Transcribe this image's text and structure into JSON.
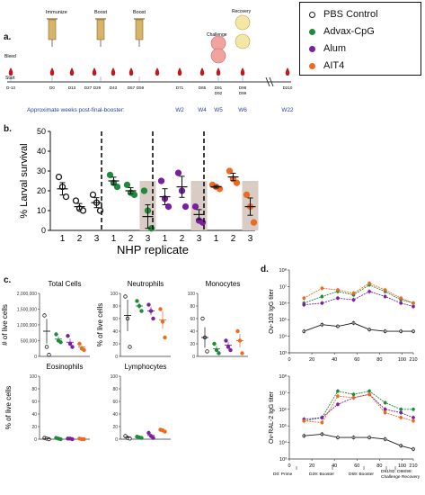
{
  "panels": {
    "a": "a.",
    "b": "b.",
    "c": "c.",
    "d": "d."
  },
  "legend": [
    {
      "label": "PBS Control",
      "color": "#1a1a1a",
      "hollow": true
    },
    {
      "label": "Advax-CpG",
      "color": "#1f8a3c",
      "hollow": false
    },
    {
      "label": "Alum",
      "color": "#7b1fa2",
      "hollow": false
    },
    {
      "label": "AIT4",
      "color": "#ee6a1f",
      "hollow": false
    }
  ],
  "timeline": {
    "events": {
      "immunize": "Immunize",
      "boost1": "Boost",
      "boost2": "Boost",
      "challenge": "Challenge",
      "recovery": "Recovery",
      "bleed": "Bleed",
      "start": "Start"
    },
    "days": [
      "D-13",
      "D0",
      "D13",
      "D27",
      "D29",
      "D43",
      "D57",
      "D59",
      "D71",
      "D85",
      "D91\nD92",
      "D98\nD99",
      "D210"
    ],
    "weeks_label": "Approximate weeks post-final-booster:",
    "weeks": [
      "W2",
      "W4",
      "W5",
      "W6",
      "W22"
    ]
  },
  "chart_data": [
    {
      "panel": "b",
      "type": "scatter",
      "ylabel": "% Larval survival",
      "xlabel": "NHP replicate",
      "ylim": [
        0,
        50
      ],
      "yticks": [
        0,
        10,
        20,
        30,
        40,
        50
      ],
      "groups": [
        {
          "name": "PBS Control",
          "replicates": [
            "1",
            "2",
            "3"
          ],
          "points": [
            [
              27,
              22,
              17
            ],
            [
              15,
              11,
              10
            ],
            [
              18,
              14,
              10
            ]
          ],
          "mean": [
            21,
            12,
            14
          ],
          "shaded": []
        },
        {
          "name": "Advax-CpG",
          "replicates": [
            "1",
            "2",
            "3"
          ],
          "points": [
            [
              28,
              24,
              22
            ],
            [
              23,
              19,
              18
            ],
            [
              20,
              10,
              1
            ]
          ],
          "mean": [
            25,
            20,
            7
          ],
          "shaded": [
            2
          ]
        },
        {
          "name": "Alum",
          "replicates": [
            "1",
            "2",
            "3"
          ],
          "points": [
            [
              25,
              16,
              12
            ],
            [
              29,
              20,
              12
            ],
            [
              12,
              5,
              4
            ]
          ],
          "mean": [
            17,
            22,
            8
          ],
          "shaded": [
            2
          ]
        },
        {
          "name": "AIT4",
          "replicates": [
            "1",
            "2",
            "3"
          ],
          "points": [
            [
              23,
              22,
              21
            ],
            [
              30,
              26,
              24
            ],
            [
              18,
              12,
              4
            ]
          ],
          "mean": [
            22,
            27,
            12
          ],
          "shaded": [
            2
          ]
        }
      ]
    },
    {
      "panel": "c",
      "type": "scatter",
      "subplots": [
        {
          "title": "Total Cells",
          "ylabel": "# of live cells",
          "yticks": [
            "0",
            "500,000",
            "1,000,000",
            "1,500,000",
            "2,000,000"
          ],
          "ylim": [
            0,
            2000000
          ],
          "groups": [
            [
              1300000,
              300000,
              50000
            ],
            [
              700000,
              500000,
              450000
            ],
            [
              650000,
              400000,
              300000
            ],
            [
              400000,
              250000,
              200000
            ]
          ],
          "means": [
            800000,
            550000,
            450000,
            300000
          ]
        },
        {
          "title": "Neutrophils",
          "ylabel": "% of live cells",
          "yticks": [
            "0",
            "20",
            "40",
            "60",
            "80",
            "100"
          ],
          "ylim": [
            0,
            100
          ],
          "groups": [
            [
              95,
              60,
              15
            ],
            [
              88,
              80,
              72
            ],
            [
              82,
              72,
              60
            ],
            [
              75,
              55,
              30
            ]
          ],
          "means": [
            65,
            80,
            72,
            58
          ]
        },
        {
          "title": "Monocytes",
          "ylabel": "",
          "yticks": [
            "0",
            "20",
            "40",
            "60",
            "80",
            "100"
          ],
          "ylim": [
            0,
            100
          ],
          "groups": [
            [
              60,
              30,
              8
            ],
            [
              20,
              10,
              5
            ],
            [
              25,
              15,
              10
            ],
            [
              40,
              25,
              5
            ]
          ],
          "means": [
            30,
            12,
            18,
            25
          ]
        },
        {
          "title": "Eosinophils",
          "ylabel": "% of live cells",
          "yticks": [
            "0",
            "20",
            "40",
            "60",
            "80",
            "100"
          ],
          "ylim": [
            0,
            100
          ],
          "groups": [
            [
              2,
              1,
              0
            ],
            [
              2,
              1,
              0
            ],
            [
              1,
              1,
              0
            ],
            [
              1,
              0,
              0
            ]
          ],
          "means": [
            1,
            1,
            1,
            0
          ]
        },
        {
          "title": "Lymphocytes",
          "ylabel": "",
          "yticks": [
            "0",
            "20",
            "40",
            "60",
            "80",
            "100"
          ],
          "ylim": [
            0,
            100
          ],
          "groups": [
            [
              5,
              2,
              1
            ],
            [
              4,
              3,
              2
            ],
            [
              10,
              5,
              2
            ],
            [
              15,
              14,
              12
            ]
          ],
          "means": [
            3,
            3,
            6,
            14
          ]
        }
      ]
    },
    {
      "panel": "d",
      "type": "line",
      "x": [
        13,
        29,
        43,
        57,
        71,
        85,
        99,
        210
      ],
      "xticks": [
        "0",
        "20",
        "40",
        "60",
        "80",
        "100",
        "210"
      ],
      "bottom_labels": [
        "D0: Prime",
        "D29: Booster",
        "D59: Booster",
        "D91/92: D98/99:",
        "Challenge Recovery"
      ],
      "subplots": [
        {
          "ylabel": "Ov-103 IgG titer",
          "yticks": [
            "10³",
            "10⁴",
            "10⁵",
            "10⁶",
            "10⁷",
            "10⁸"
          ],
          "ylim_log": [
            3,
            8
          ],
          "series": [
            {
              "name": "PBS Control",
              "values_log": [
                4.3,
                4.7,
                4.6,
                4.8,
                4.4,
                4.3,
                4.3,
                4.3
              ]
            },
            {
              "name": "Advax-CpG",
              "values_log": [
                6.0,
                6.4,
                6.7,
                6.5,
                7.1,
                6.7,
                6.2,
                6.0
              ]
            },
            {
              "name": "Alum",
              "values_log": [
                5.9,
                6.0,
                6.3,
                6.2,
                6.7,
                6.4,
                6.0,
                5.8
              ]
            },
            {
              "name": "AIT4",
              "values_log": [
                6.3,
                6.9,
                6.8,
                6.6,
                7.2,
                6.8,
                6.3,
                6.0
              ]
            }
          ]
        },
        {
          "ylabel": "Ov-RAL-2 IgG titer",
          "yticks": [
            "10³",
            "10⁴",
            "10⁵",
            "10⁶",
            "10⁷",
            "10⁸"
          ],
          "ylim_log": [
            3,
            8
          ],
          "series": [
            {
              "name": "PBS Control",
              "values_log": [
                4.4,
                4.5,
                4.3,
                4.3,
                4.3,
                4.2,
                3.8,
                3.6
              ]
            },
            {
              "name": "Advax-CpG",
              "values_log": [
                5.3,
                5.5,
                7.1,
                6.9,
                7.1,
                6.4,
                6.0,
                6.0
              ]
            },
            {
              "name": "Alum",
              "values_log": [
                5.4,
                5.5,
                6.3,
                6.7,
                6.9,
                6.0,
                5.8,
                5.5
              ]
            },
            {
              "name": "AIT4",
              "values_log": [
                5.3,
                5.2,
                6.8,
                6.7,
                6.9,
                5.8,
                5.5,
                5.3
              ]
            }
          ]
        }
      ]
    }
  ]
}
